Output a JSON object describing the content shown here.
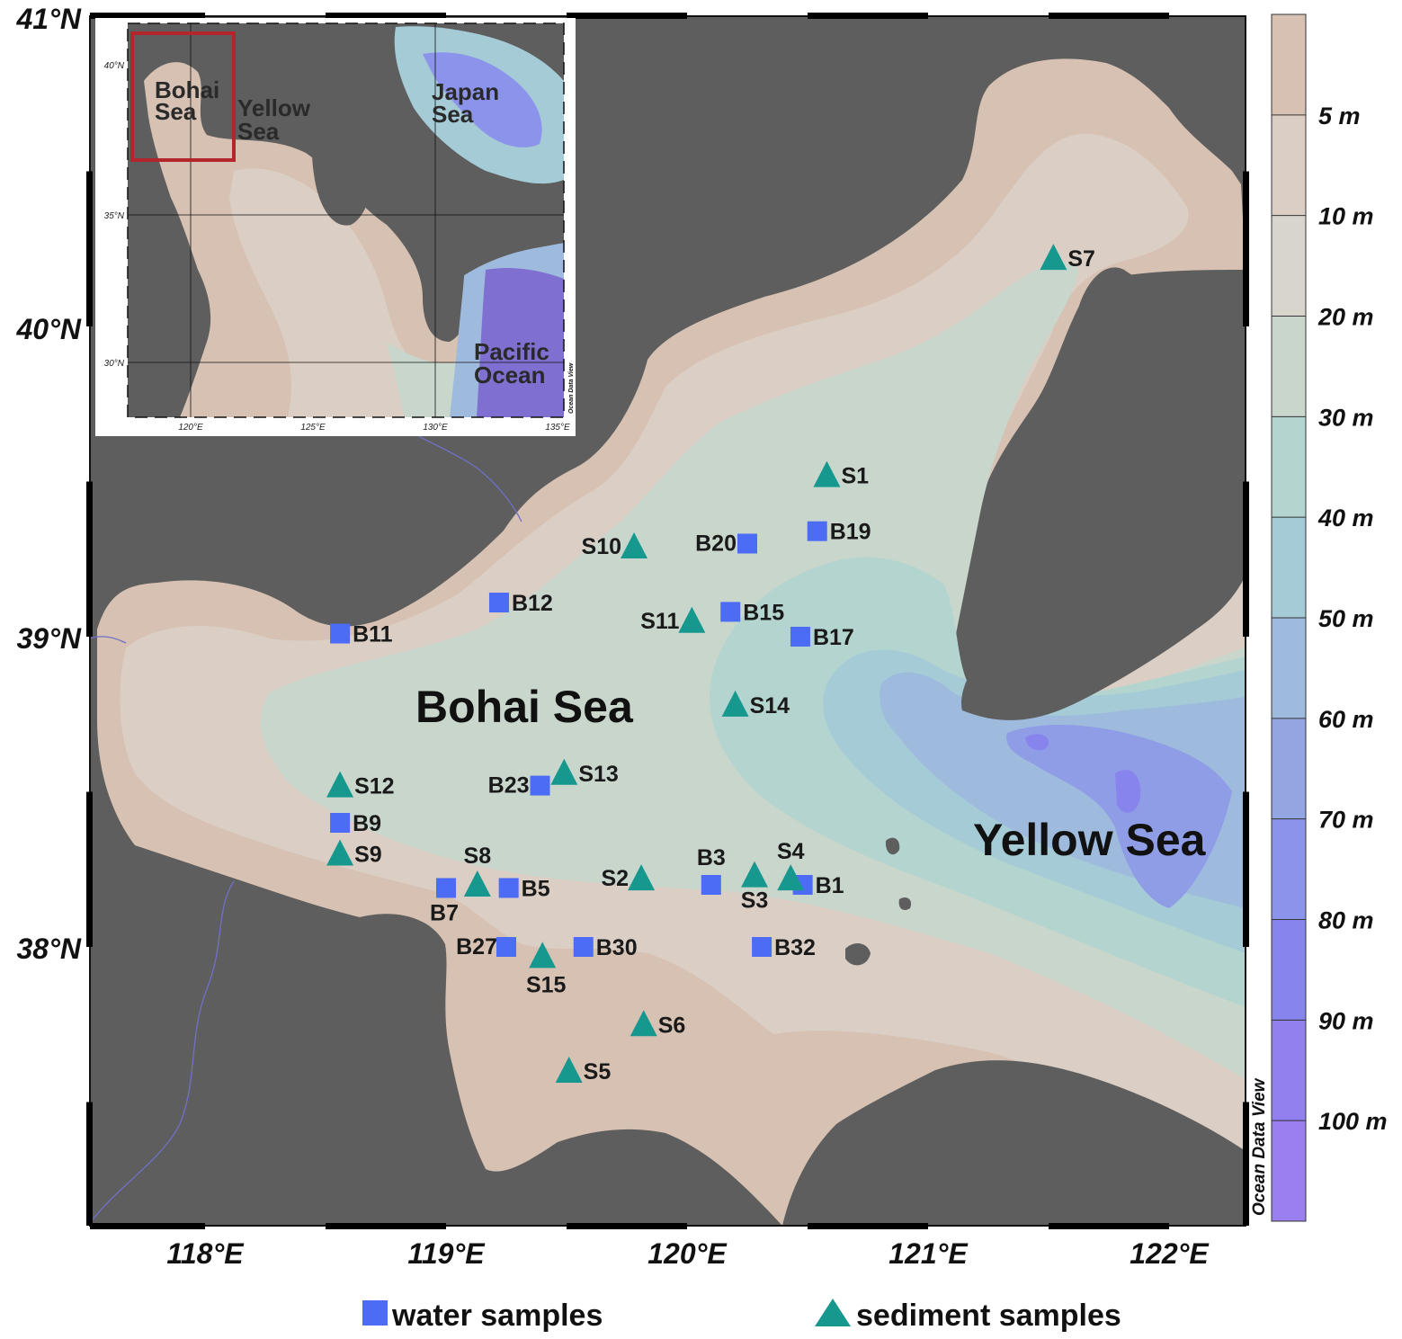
{
  "map": {
    "sea_labels": {
      "bohai": "Bohai Sea",
      "yellow": "Yellow Sea"
    },
    "lat_labels": [
      "41°N",
      "40°N",
      "39°N",
      "38°N"
    ],
    "lon_labels": [
      "118°E",
      "119°E",
      "120°E",
      "121°E",
      "122°E"
    ],
    "credit": "Ocean Data View",
    "colors": {
      "land": "#5e5e5e",
      "shallow": "#d6c1b2",
      "water_sample": "#4d6cf5",
      "sediment_sample": "#17988f"
    },
    "water_samples": [
      {
        "id": "B1",
        "lon": 120.48,
        "lat": 38.2
      },
      {
        "id": "B3",
        "lon": 120.1,
        "lat": 38.2
      },
      {
        "id": "B5",
        "lon": 119.26,
        "lat": 38.19
      },
      {
        "id": "B7",
        "lon": 119.0,
        "lat": 38.19
      },
      {
        "id": "B9",
        "lon": 118.56,
        "lat": 38.4
      },
      {
        "id": "B11",
        "lon": 118.56,
        "lat": 39.01
      },
      {
        "id": "B12",
        "lon": 119.22,
        "lat": 39.11
      },
      {
        "id": "B15",
        "lon": 120.18,
        "lat": 39.08
      },
      {
        "id": "B17",
        "lon": 120.47,
        "lat": 39.0
      },
      {
        "id": "B19",
        "lon": 120.54,
        "lat": 39.34
      },
      {
        "id": "B20",
        "lon": 120.25,
        "lat": 39.3
      },
      {
        "id": "B23",
        "lon": 119.39,
        "lat": 38.52
      },
      {
        "id": "B27",
        "lon": 119.25,
        "lat": 38.0
      },
      {
        "id": "B30",
        "lon": 119.57,
        "lat": 38.0
      },
      {
        "id": "B32",
        "lon": 120.31,
        "lat": 38.0
      }
    ],
    "sediment_samples": [
      {
        "id": "S1",
        "lon": 120.58,
        "lat": 39.52
      },
      {
        "id": "S2",
        "lon": 119.81,
        "lat": 38.22
      },
      {
        "id": "S3",
        "lon": 120.28,
        "lat": 38.23
      },
      {
        "id": "S4",
        "lon": 120.43,
        "lat": 38.22
      },
      {
        "id": "S5",
        "lon": 119.51,
        "lat": 37.6
      },
      {
        "id": "S6",
        "lon": 119.82,
        "lat": 37.75
      },
      {
        "id": "S7",
        "lon": 121.52,
        "lat": 40.22
      },
      {
        "id": "S8",
        "lon": 119.13,
        "lat": 38.2
      },
      {
        "id": "S9",
        "lon": 118.56,
        "lat": 38.3
      },
      {
        "id": "S10",
        "lon": 119.78,
        "lat": 39.29
      },
      {
        "id": "S11",
        "lon": 120.02,
        "lat": 39.05
      },
      {
        "id": "S12",
        "lon": 118.56,
        "lat": 38.52
      },
      {
        "id": "S13",
        "lon": 119.49,
        "lat": 38.56
      },
      {
        "id": "S14",
        "lon": 120.2,
        "lat": 38.78
      },
      {
        "id": "S15",
        "lon": 119.4,
        "lat": 37.97
      }
    ]
  },
  "colorbar": {
    "labels": [
      "5 m",
      "10 m",
      "20 m",
      "30 m",
      "40 m",
      "50 m",
      "60 m",
      "70 m",
      "80 m",
      "90 m",
      "100 m"
    ],
    "colors": [
      "#d6c1b2",
      "#dbcec4",
      "#d8d6cc",
      "#c8d6cc",
      "#b4d4d0",
      "#a4cbd6",
      "#9ebbde",
      "#93a6e2",
      "#8c93ea",
      "#8884ee",
      "#9280ef",
      "#9a7ff0"
    ]
  },
  "inset": {
    "labels": {
      "bohai_1": "Bohai",
      "bohai_2": "Sea",
      "yellow_1": "Yellow",
      "yellow_2": "Sea",
      "japan_1": "Japan",
      "japan_2": "Sea",
      "pacific_1": "Pacific",
      "pacific_2": "Ocean"
    },
    "lat_ticks": [
      "40°N",
      "35°N",
      "30°N"
    ],
    "lon_ticks": [
      "120°E",
      "125°E",
      "130°E",
      "135°E"
    ],
    "credit": "Ocean Data View"
  },
  "legend": {
    "water": "water samples",
    "sediment": "sediment samples"
  }
}
